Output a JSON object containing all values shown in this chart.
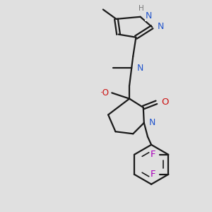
{
  "background_color": "#e0e0e0",
  "bond_color": "#1a1a1a",
  "N_color": "#2255cc",
  "O_color": "#cc1111",
  "F_color": "#aa00bb",
  "H_color": "#777777",
  "figsize": [
    3.0,
    3.0
  ],
  "dpi": 100,
  "xlim": [
    30,
    270
  ],
  "ylim": [
    5,
    295
  ]
}
